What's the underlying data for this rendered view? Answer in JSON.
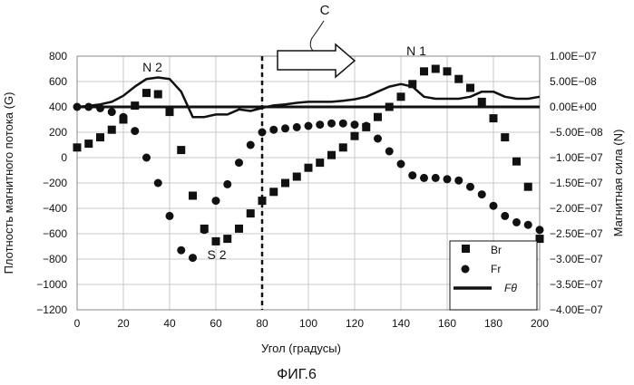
{
  "figure_caption": "ФИГ.6",
  "chart_data": {
    "type": "scatter",
    "xlabel": "Угол (градусы)",
    "ylabel": "Плотность магнитного потока (G)",
    "y2label": "Магнитная сила (N)",
    "xlim": [
      0,
      200
    ],
    "ylim": [
      -1200,
      800
    ],
    "y2lim": [
      -4e-07,
      1e-07
    ],
    "x_ticks": [
      "0",
      "20",
      "40",
      "60",
      "80",
      "100",
      "120",
      "140",
      "160",
      "180",
      "200"
    ],
    "y_ticks": [
      "800",
      "600",
      "400",
      "200",
      "0",
      "−200",
      "−400",
      "−600",
      "−800",
      "−1000",
      "−1200"
    ],
    "y2_ticks": [
      "1.00E−07",
      "5.00E−08",
      "0.00E+00",
      "−5.00E−08",
      "−1.00E−07",
      "−1.50E−07",
      "−2.00E−07",
      "−2.50E−07",
      "−3.00E−07",
      "−3.50E−07",
      "−4.00E−07"
    ],
    "grid": true,
    "legend_position": "bottom-right",
    "annotations": {
      "N2": "N 2",
      "S2": "S 2",
      "N1": "N 1",
      "C": "C"
    },
    "vertical_marker_x": 80,
    "zero_line_y2": 0,
    "series": [
      {
        "name": "Br",
        "marker": "square",
        "axis": "left",
        "x": [
          0,
          5,
          10,
          15,
          20,
          25,
          30,
          35,
          40,
          45,
          50,
          55,
          60,
          65,
          70,
          75,
          80,
          85,
          90,
          95,
          100,
          105,
          110,
          115,
          120,
          125,
          130,
          135,
          140,
          145,
          150,
          155,
          160,
          165,
          170,
          175,
          180,
          185,
          190,
          195,
          200
        ],
        "y": [
          80,
          110,
          160,
          220,
          300,
          410,
          510,
          500,
          360,
          60,
          -300,
          -560,
          -660,
          -640,
          -560,
          -440,
          -340,
          -270,
          -200,
          -150,
          -80,
          -40,
          20,
          80,
          170,
          240,
          320,
          400,
          480,
          580,
          680,
          700,
          680,
          620,
          550,
          440,
          310,
          160,
          -30,
          -230,
          -640
        ]
      },
      {
        "name": "Fr",
        "marker": "circle",
        "axis": "left",
        "x": [
          0,
          5,
          10,
          15,
          20,
          25,
          30,
          35,
          40,
          45,
          50,
          55,
          60,
          65,
          70,
          75,
          80,
          85,
          90,
          95,
          100,
          105,
          110,
          115,
          120,
          125,
          130,
          135,
          140,
          145,
          150,
          155,
          160,
          165,
          170,
          175,
          180,
          185,
          190,
          195,
          200
        ],
        "y": [
          400,
          400,
          390,
          360,
          320,
          210,
          0,
          -200,
          -460,
          -730,
          -790,
          -570,
          -340,
          -210,
          -40,
          100,
          200,
          220,
          230,
          240,
          250,
          260,
          270,
          270,
          260,
          250,
          150,
          50,
          -50,
          -140,
          -160,
          -160,
          -170,
          -180,
          -230,
          -290,
          -380,
          -460,
          -510,
          -530,
          -570
        ]
      },
      {
        "name": "Fθ",
        "marker": "line",
        "axis": "right",
        "x": [
          0,
          5,
          10,
          15,
          20,
          25,
          30,
          35,
          40,
          45,
          50,
          55,
          60,
          65,
          70,
          75,
          80,
          85,
          90,
          95,
          100,
          105,
          110,
          115,
          120,
          125,
          130,
          135,
          140,
          145,
          150,
          155,
          160,
          165,
          170,
          175,
          180,
          185,
          190,
          195,
          200
        ],
        "y": [
          0.0,
          2e-09,
          5e-09,
          1e-08,
          2.2e-08,
          4e-08,
          5.5e-08,
          5.8e-08,
          5.5e-08,
          3e-08,
          -2e-08,
          -2e-08,
          -1.5e-08,
          -1.5e-08,
          -5e-09,
          -8e-09,
          -2e-09,
          3e-09,
          5e-09,
          8e-09,
          1e-08,
          1e-08,
          1e-08,
          1.2e-08,
          1.5e-08,
          2e-08,
          3e-08,
          4e-08,
          4.5e-08,
          4e-08,
          2e-08,
          1.6e-08,
          1.6e-08,
          1.6e-08,
          2e-08,
          3e-08,
          3e-08,
          2e-08,
          1.6e-08,
          1.6e-08,
          2e-08
        ]
      }
    ]
  }
}
